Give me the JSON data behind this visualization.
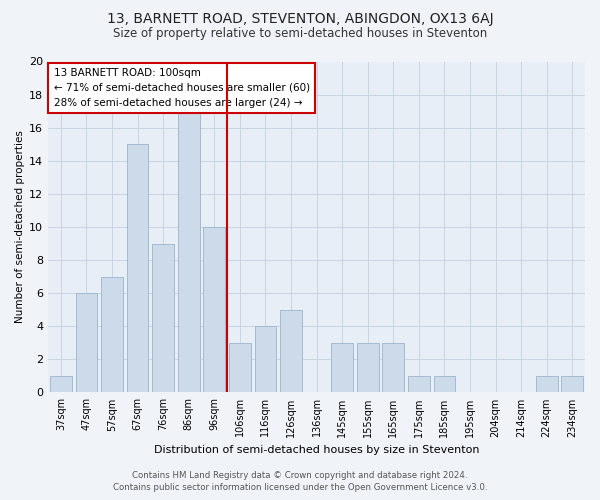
{
  "title": "13, BARNETT ROAD, STEVENTON, ABINGDON, OX13 6AJ",
  "subtitle": "Size of property relative to semi-detached houses in Steventon",
  "xlabel": "Distribution of semi-detached houses by size in Steventon",
  "ylabel": "Number of semi-detached properties",
  "categories": [
    "37sqm",
    "47sqm",
    "57sqm",
    "67sqm",
    "76sqm",
    "86sqm",
    "96sqm",
    "106sqm",
    "116sqm",
    "126sqm",
    "136sqm",
    "145sqm",
    "155sqm",
    "165sqm",
    "175sqm",
    "185sqm",
    "195sqm",
    "204sqm",
    "214sqm",
    "224sqm",
    "234sqm"
  ],
  "values": [
    1,
    6,
    7,
    15,
    9,
    17,
    10,
    3,
    4,
    5,
    0,
    3,
    3,
    3,
    1,
    1,
    0,
    0,
    0,
    1,
    1
  ],
  "bar_color": "#ccdaea",
  "bar_edge_color": "#9ab5cc",
  "vline_color": "#cc0000",
  "annotation_title": "13 BARNETT ROAD: 100sqm",
  "annotation_line1": "← 71% of semi-detached houses are smaller (60)",
  "annotation_line2": "28% of semi-detached houses are larger (24) →",
  "annotation_box_color": "#ffffff",
  "annotation_box_edge": "#cc0000",
  "grid_color": "#c8d4e4",
  "bg_color": "#e8eef6",
  "fig_bg_color": "#f0f4f8",
  "ylim": [
    0,
    20
  ],
  "yticks": [
    0,
    2,
    4,
    6,
    8,
    10,
    12,
    14,
    16,
    18,
    20
  ],
  "title_fontsize": 10,
  "subtitle_fontsize": 8.5,
  "footer1": "Contains HM Land Registry data © Crown copyright and database right 2024.",
  "footer2": "Contains public sector information licensed under the Open Government Licence v3.0."
}
